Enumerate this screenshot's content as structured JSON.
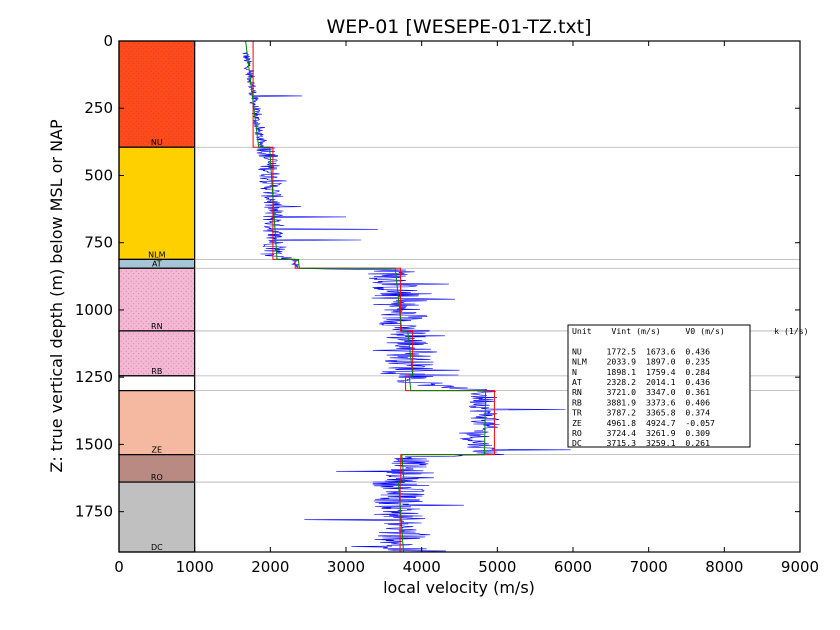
{
  "colors": {
    "velocity_log": "#0000ff",
    "interval_velocity": "#ff0000",
    "v0_k_model": "#008000",
    "boundary_line": "#b0b0b0"
  },
  "chart_data": {
    "type": "line",
    "title": "WEP-01 [WESEPE-01-TZ.txt]",
    "xlabel": "local velocity (m/s)",
    "ylabel": "Z: true vertical depth (m) below MSL or NAP",
    "xlim": [
      0,
      9000
    ],
    "ylim": [
      1900,
      0
    ],
    "x_ticks": [
      "0",
      "1000",
      "2000",
      "3000",
      "4000",
      "5000",
      "6000",
      "7000",
      "8000",
      "9000"
    ],
    "y_ticks": [
      "0",
      "250",
      "500",
      "750",
      "1000",
      "1250",
      "1500",
      "1750"
    ],
    "units": [
      {
        "name": "NU",
        "label": "NU",
        "top": 0,
        "bottom": 395,
        "color": "#ff4a1c",
        "pattern": "dots"
      },
      {
        "name": "NLM",
        "label": "NLM",
        "top": 395,
        "bottom": 812,
        "color": "#ffd000",
        "pattern": "none"
      },
      {
        "name": "AT",
        "label": "AT",
        "top": 812,
        "bottom": 845,
        "color": "#a6c4d8",
        "pattern": "none"
      },
      {
        "name": "RN",
        "label": "RN",
        "top": 845,
        "bottom": 1078,
        "color": "#f4b8d6",
        "pattern": "dots"
      },
      {
        "name": "RB",
        "label": "RB",
        "top": 1078,
        "bottom": 1245,
        "color": "#f4b8d6",
        "pattern": "dots"
      },
      {
        "name": "TR",
        "label": "",
        "top": 1245,
        "bottom": 1300,
        "color": "#ffffff",
        "pattern": "none"
      },
      {
        "name": "ZE",
        "label": "ZE",
        "top": 1300,
        "bottom": 1538,
        "color": "#f5b8a0",
        "pattern": "none"
      },
      {
        "name": "RO",
        "label": "RO",
        "top": 1538,
        "bottom": 1640,
        "color": "#b88a82",
        "pattern": "none"
      },
      {
        "name": "DC",
        "label": "DC",
        "top": 1640,
        "bottom": 1900,
        "color": "#c0c0c0",
        "pattern": "none"
      }
    ],
    "boundaries": [
      395,
      812,
      845,
      1078,
      1245,
      1300,
      1538,
      1640
    ],
    "series": [
      {
        "key": "vint",
        "type": "step",
        "points": [
          [
            1772.5,
            0
          ],
          [
            1772.5,
            395
          ],
          [
            2033.9,
            395
          ],
          [
            2033.9,
            812
          ],
          [
            2328.2,
            812
          ],
          [
            2328.2,
            845
          ],
          [
            3721.0,
            845
          ],
          [
            3721.0,
            1078
          ],
          [
            3881.9,
            1078
          ],
          [
            3881.9,
            1245
          ],
          [
            3787.2,
            1245
          ],
          [
            3787.2,
            1300
          ],
          [
            4961.8,
            1300
          ],
          [
            4961.8,
            1538
          ],
          [
            3724.4,
            1538
          ],
          [
            3724.4,
            1640
          ],
          [
            3715.3,
            1640
          ],
          [
            3715.3,
            1900
          ]
        ]
      },
      {
        "key": "v0k",
        "type": "segments",
        "points": [
          [
            1673.6,
            0
          ],
          [
            1845.9,
            395
          ],
          [
            1990.0,
            395
          ],
          [
            2088.0,
            812
          ],
          [
            2370.0,
            812
          ],
          [
            2384.0,
            845
          ],
          [
            3652.0,
            845
          ],
          [
            3736.0,
            1078
          ],
          [
            3815.0,
            1078
          ],
          [
            3883.0,
            1245
          ],
          [
            3835.0,
            1245
          ],
          [
            3856.0,
            1300
          ],
          [
            4845.0,
            1300
          ],
          [
            4831.0,
            1538
          ],
          [
            3737.0,
            1538
          ],
          [
            3768.0,
            1640
          ],
          [
            3692.0,
            1640
          ],
          [
            3760.0,
            1900
          ]
        ]
      }
    ],
    "velocity_log": {
      "key": "log",
      "description_points": "noisy sonic log",
      "trend": [
        [
          1640,
          0
        ],
        [
          1750,
          150
        ],
        [
          1820,
          300
        ],
        [
          1880,
          390
        ],
        [
          1960,
          395
        ],
        [
          2030,
          600
        ],
        [
          2060,
          800
        ],
        [
          2330,
          812
        ],
        [
          2340,
          845
        ],
        [
          3600,
          850
        ],
        [
          3700,
          1000
        ],
        [
          3800,
          1080
        ],
        [
          3850,
          1200
        ],
        [
          3900,
          1245
        ],
        [
          3800,
          1270
        ],
        [
          4800,
          1300
        ],
        [
          4850,
          1420
        ],
        [
          4700,
          1480
        ],
        [
          4900,
          1538
        ],
        [
          3900,
          1545
        ],
        [
          3700,
          1640
        ],
        [
          3720,
          1900
        ]
      ],
      "noise": [
        [
          0,
          390,
          60
        ],
        [
          395,
          812,
          150
        ],
        [
          812,
          845,
          60
        ],
        [
          845,
          1245,
          330
        ],
        [
          1245,
          1300,
          200
        ],
        [
          1300,
          1538,
          200
        ],
        [
          1538,
          1640,
          250
        ],
        [
          1640,
          1900,
          350
        ]
      ],
      "spikes": [
        [
          205,
          2420
        ],
        [
          655,
          3000
        ],
        [
          700,
          3420
        ],
        [
          740,
          3200
        ],
        [
          905,
          4360
        ],
        [
          960,
          4440
        ],
        [
          1225,
          4500
        ],
        [
          1370,
          5900
        ],
        [
          1520,
          5970
        ],
        [
          1600,
          2870
        ],
        [
          1780,
          2450
        ],
        [
          1880,
          3070
        ]
      ]
    },
    "legend": {
      "position": "middle-right",
      "lines": [
        "Unit    Vint (m/s)     V0 (m/s)          k (1/s)",
        "",
        "NU     1772.5  1673.6  0.436",
        "NLM    2033.9  1897.0  0.235",
        "N      1898.1  1759.4  0.284",
        "AT     2328.2  2014.1  0.436",
        "RN     3721.0  3347.0  0.361",
        "RB     3881.9  3373.6  0.406",
        "TR     3787.2  3365.8  0.374",
        "ZE     4961.8  4924.7  -0.057",
        "RO     3724.4  3261.9  0.309",
        "DC     3715.3  3259.1  0.261"
      ]
    }
  }
}
